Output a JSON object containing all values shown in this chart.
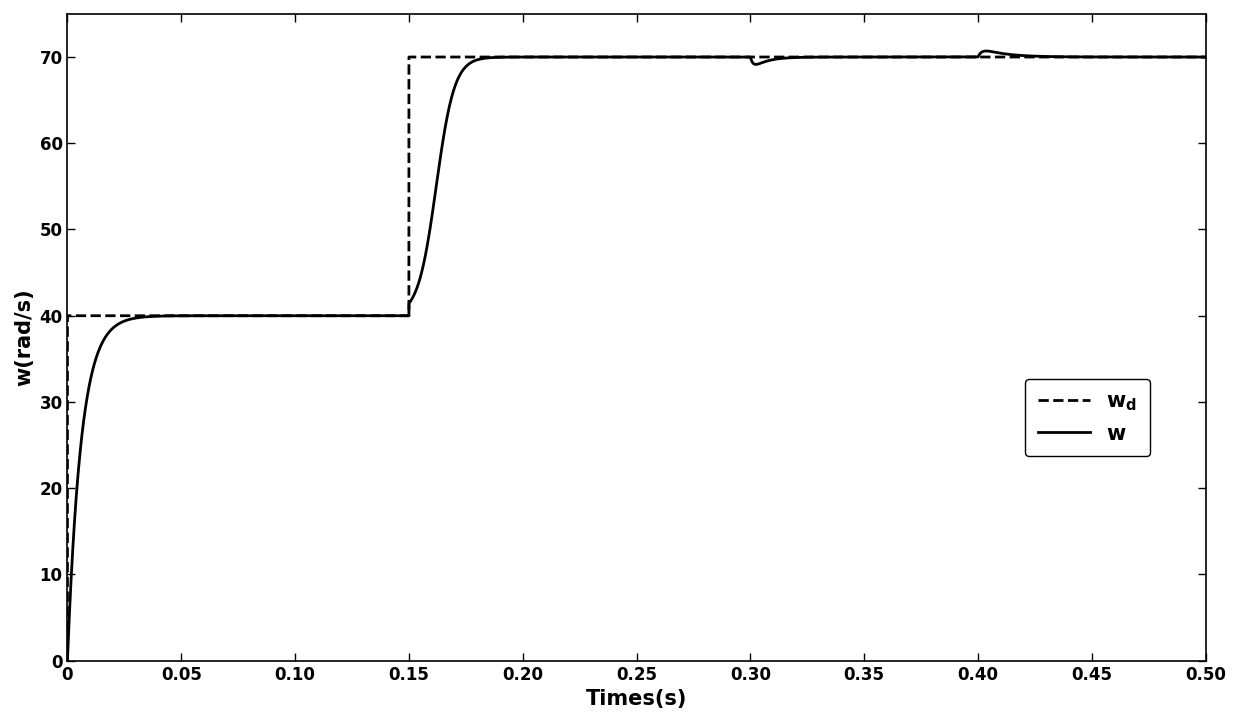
{
  "xlabel": "Times(s)",
  "ylabel": "w(rad/s)",
  "xlim": [
    0,
    0.5
  ],
  "ylim": [
    0,
    75
  ],
  "yticks": [
    0,
    10,
    20,
    30,
    40,
    50,
    60,
    70
  ],
  "xticks": [
    0,
    0.05,
    0.1,
    0.15,
    0.2,
    0.25,
    0.3,
    0.35,
    0.4,
    0.45,
    0.5
  ],
  "line_color": "#000000",
  "background_color": "#ffffff",
  "figsize": [
    12.4,
    7.23
  ],
  "dpi": 100,
  "tau1": 0.006,
  "tau2": 0.012,
  "t_step1": 0.0,
  "t_step2": 0.15,
  "v0": 0,
  "v1": 40,
  "v2": 70,
  "dist1_t": 0.3,
  "dist1_amp": -1.6,
  "dist1_rise_tau": 0.0015,
  "dist1_fall_tau": 0.006,
  "dist2_t": 0.4,
  "dist2_amp": 1.2,
  "dist2_rise_tau": 0.002,
  "dist2_fall_tau": 0.01
}
